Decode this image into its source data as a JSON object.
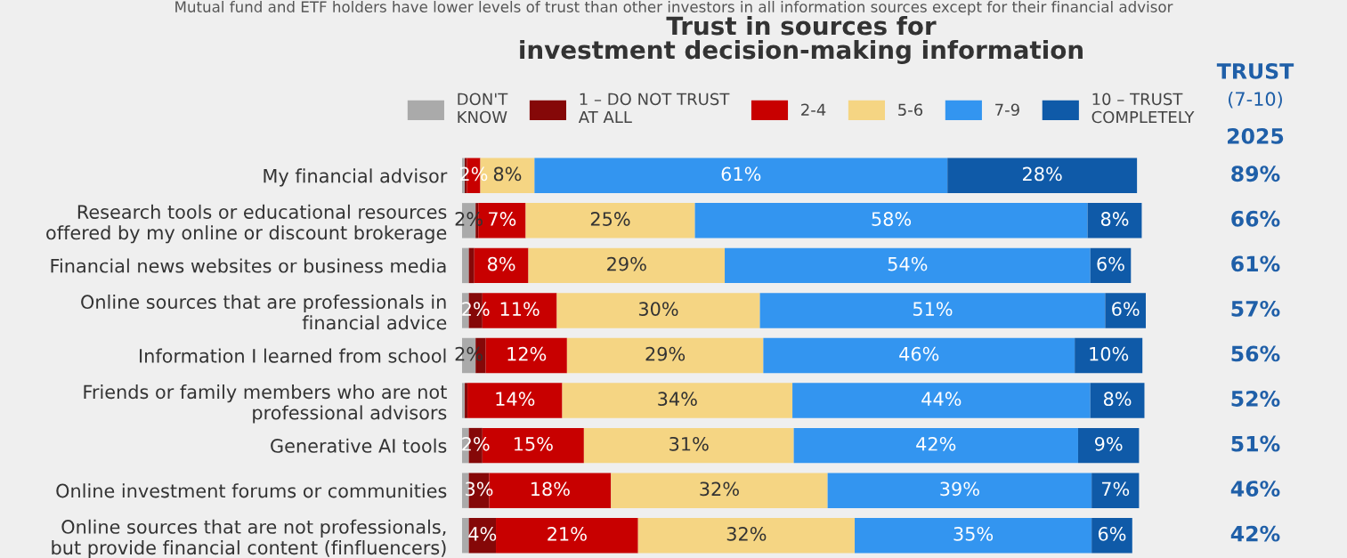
{
  "chart_data": {
    "type": "bar",
    "orientation": "horizontal",
    "stacked": true,
    "title": "Trust in sources for\ninvestment decision-making information",
    "annotations": [
      "Mutual fund and ETF holders have lower levels of trust than other investors in all information sources except for their financial advisor",
      "TRUST",
      "(7-10)",
      "2025",
      "89%",
      "66%",
      "61%",
      "57%",
      "56%",
      "52%",
      "51%",
      "46%",
      "42%"
    ],
    "categories": [
      "My financial advisor",
      "Research tools or educational resources\noffered by my online or discount brokerage",
      "Financial news websites or business media",
      "Online sources that are professionals in\nfinancial advice",
      "Information I learned from school",
      "Friends or family members who are not\nprofessional advisors",
      "Generative AI tools",
      "Online investment forums or communities",
      "Online sources that are not professionals,\nbut provide financial content (finfluencers)"
    ],
    "series": [
      {
        "name": "DON'T\nKNOW",
        "color": "#aaaaaa",
        "values": [
          0.4,
          2,
          1,
          1,
          2,
          0.4,
          1,
          1,
          1
        ],
        "value_labels": [
          null,
          "2%",
          null,
          null,
          "2%",
          null,
          null,
          null,
          null
        ]
      },
      {
        "name": "1 – DO NOT TRUST\nAT ALL",
        "color": "#850808",
        "values": [
          0.3,
          0.4,
          0.8,
          2,
          1.5,
          0.4,
          2,
          3,
          4
        ],
        "value_labels": [
          null,
          null,
          null,
          "2%",
          null,
          null,
          "2%",
          "3%",
          "4%"
        ]
      },
      {
        "name": "2-4",
        "color": "#c80000",
        "values": [
          2,
          7,
          8,
          11,
          12,
          14,
          15,
          18,
          21
        ],
        "value_labels": [
          "2%",
          "7%",
          "8%",
          "11%",
          "12%",
          "14%",
          "15%",
          "18%",
          "21%"
        ]
      },
      {
        "name": "5-6",
        "color": "#f5d583",
        "values": [
          8,
          25,
          29,
          30,
          29,
          34,
          31,
          32,
          32
        ],
        "value_labels": [
          "8%",
          "25%",
          "29%",
          "30%",
          "29%",
          "34%",
          "31%",
          "32%",
          "32%"
        ]
      },
      {
        "name": "7-9",
        "color": "#3395f0",
        "values": [
          61,
          58,
          54,
          51,
          46,
          44,
          42,
          39,
          35
        ],
        "value_labels": [
          "61%",
          "58%",
          "54%",
          "51%",
          "46%",
          "44%",
          "42%",
          "39%",
          "35%"
        ]
      },
      {
        "name": "10 – TRUST\nCOMPLETELY",
        "color": "#0f5aa8",
        "values": [
          28,
          8,
          6,
          6,
          10,
          8,
          9,
          7,
          6
        ],
        "value_labels": [
          "28%",
          "8%",
          "6%",
          "6%",
          "10%",
          "8%",
          "9%",
          "7%",
          "6%"
        ]
      }
    ],
    "xlim": [
      0,
      101
    ],
    "grid": false,
    "legend": "top"
  }
}
